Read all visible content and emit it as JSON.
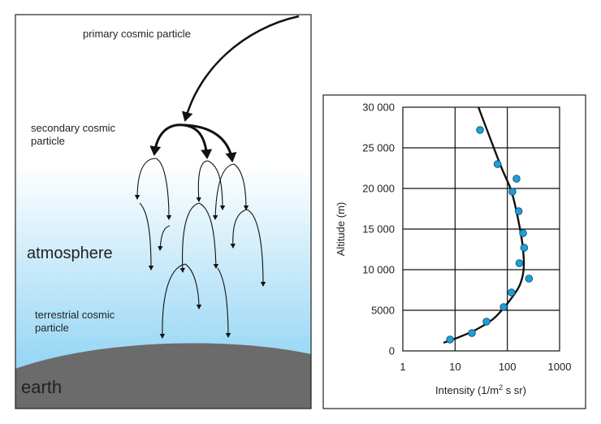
{
  "diagram": {
    "labels": {
      "primary": "primary cosmic particle",
      "secondary_1": "secondary cosmic",
      "secondary_2": "particle",
      "atmosphere": "atmosphere",
      "terrestrial_1": "terrestrial cosmic",
      "terrestrial_2": "particle",
      "earth": "earth"
    },
    "colors": {
      "sky_top": "#ffffff",
      "sky_bottom": "#7fcdf2",
      "earth": "#6b6b6b",
      "arrow": "#111111"
    }
  },
  "chart_data": {
    "type": "scatter",
    "xscale": "log",
    "xlim": [
      1,
      1000
    ],
    "ylim": [
      0,
      30000
    ],
    "xlabel_prefix": "Intensity (1/m",
    "xlabel_sup": "2",
    "xlabel_suffix": " s sr)",
    "ylabel": "Altitude (m)",
    "x_ticks": [
      1,
      10,
      100,
      1000
    ],
    "x_tick_labels": [
      "1",
      "10",
      "100",
      "1000"
    ],
    "y_ticks": [
      0,
      5000,
      10000,
      15000,
      20000,
      25000,
      30000
    ],
    "y_tick_labels": [
      "0",
      "5000",
      "10 000",
      "15 000",
      "20 000",
      "25 000",
      "30 000"
    ],
    "grid": true,
    "marker_color": "#1e9fd8",
    "curve_color": "#111111",
    "points": [
      {
        "x": 8,
        "y": 1400
      },
      {
        "x": 21,
        "y": 2200
      },
      {
        "x": 40,
        "y": 3600
      },
      {
        "x": 85,
        "y": 5400
      },
      {
        "x": 120,
        "y": 7200
      },
      {
        "x": 260,
        "y": 8900
      },
      {
        "x": 170,
        "y": 10800
      },
      {
        "x": 210,
        "y": 12700
      },
      {
        "x": 200,
        "y": 14500
      },
      {
        "x": 165,
        "y": 17200
      },
      {
        "x": 125,
        "y": 19600
      },
      {
        "x": 150,
        "y": 21200
      },
      {
        "x": 65,
        "y": 23000
      },
      {
        "x": 30,
        "y": 27200
      }
    ],
    "curve": [
      {
        "x": 6,
        "y": 1000
      },
      {
        "x": 12,
        "y": 1700
      },
      {
        "x": 25,
        "y": 2600
      },
      {
        "x": 55,
        "y": 4000
      },
      {
        "x": 105,
        "y": 6000
      },
      {
        "x": 170,
        "y": 8000
      },
      {
        "x": 205,
        "y": 10000
      },
      {
        "x": 200,
        "y": 12500
      },
      {
        "x": 175,
        "y": 15000
      },
      {
        "x": 140,
        "y": 18000
      },
      {
        "x": 115,
        "y": 20000
      },
      {
        "x": 78,
        "y": 22500
      },
      {
        "x": 48,
        "y": 26000
      },
      {
        "x": 28,
        "y": 30000
      }
    ]
  }
}
